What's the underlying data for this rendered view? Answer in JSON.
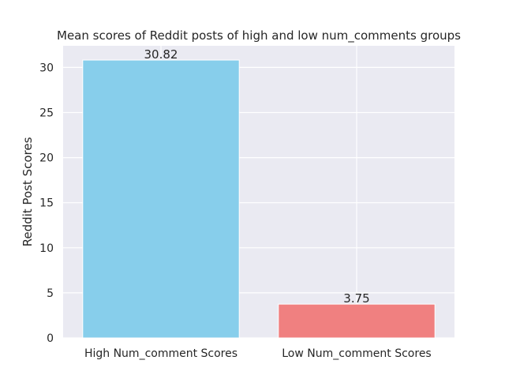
{
  "chart_data": {
    "type": "bar",
    "title": "Mean scores of Reddit posts of high and low num_comments groups",
    "xlabel": "",
    "ylabel": "Reddit Post Scores",
    "categories": [
      "High Num_comment Scores",
      "Low Num_comment Scores"
    ],
    "values": [
      30.82,
      3.75
    ],
    "data_labels": [
      "30.82",
      "3.75"
    ],
    "bar_colors": [
      "#87ceeb",
      "#f08080"
    ],
    "ylim": [
      0,
      32.4
    ],
    "yticks": [
      0,
      5,
      10,
      15,
      20,
      25,
      30
    ],
    "ytick_labels": [
      "0",
      "5",
      "10",
      "15",
      "20",
      "25",
      "30"
    ],
    "grid": true,
    "background_color": "#eaeaf2",
    "legend": "none"
  }
}
